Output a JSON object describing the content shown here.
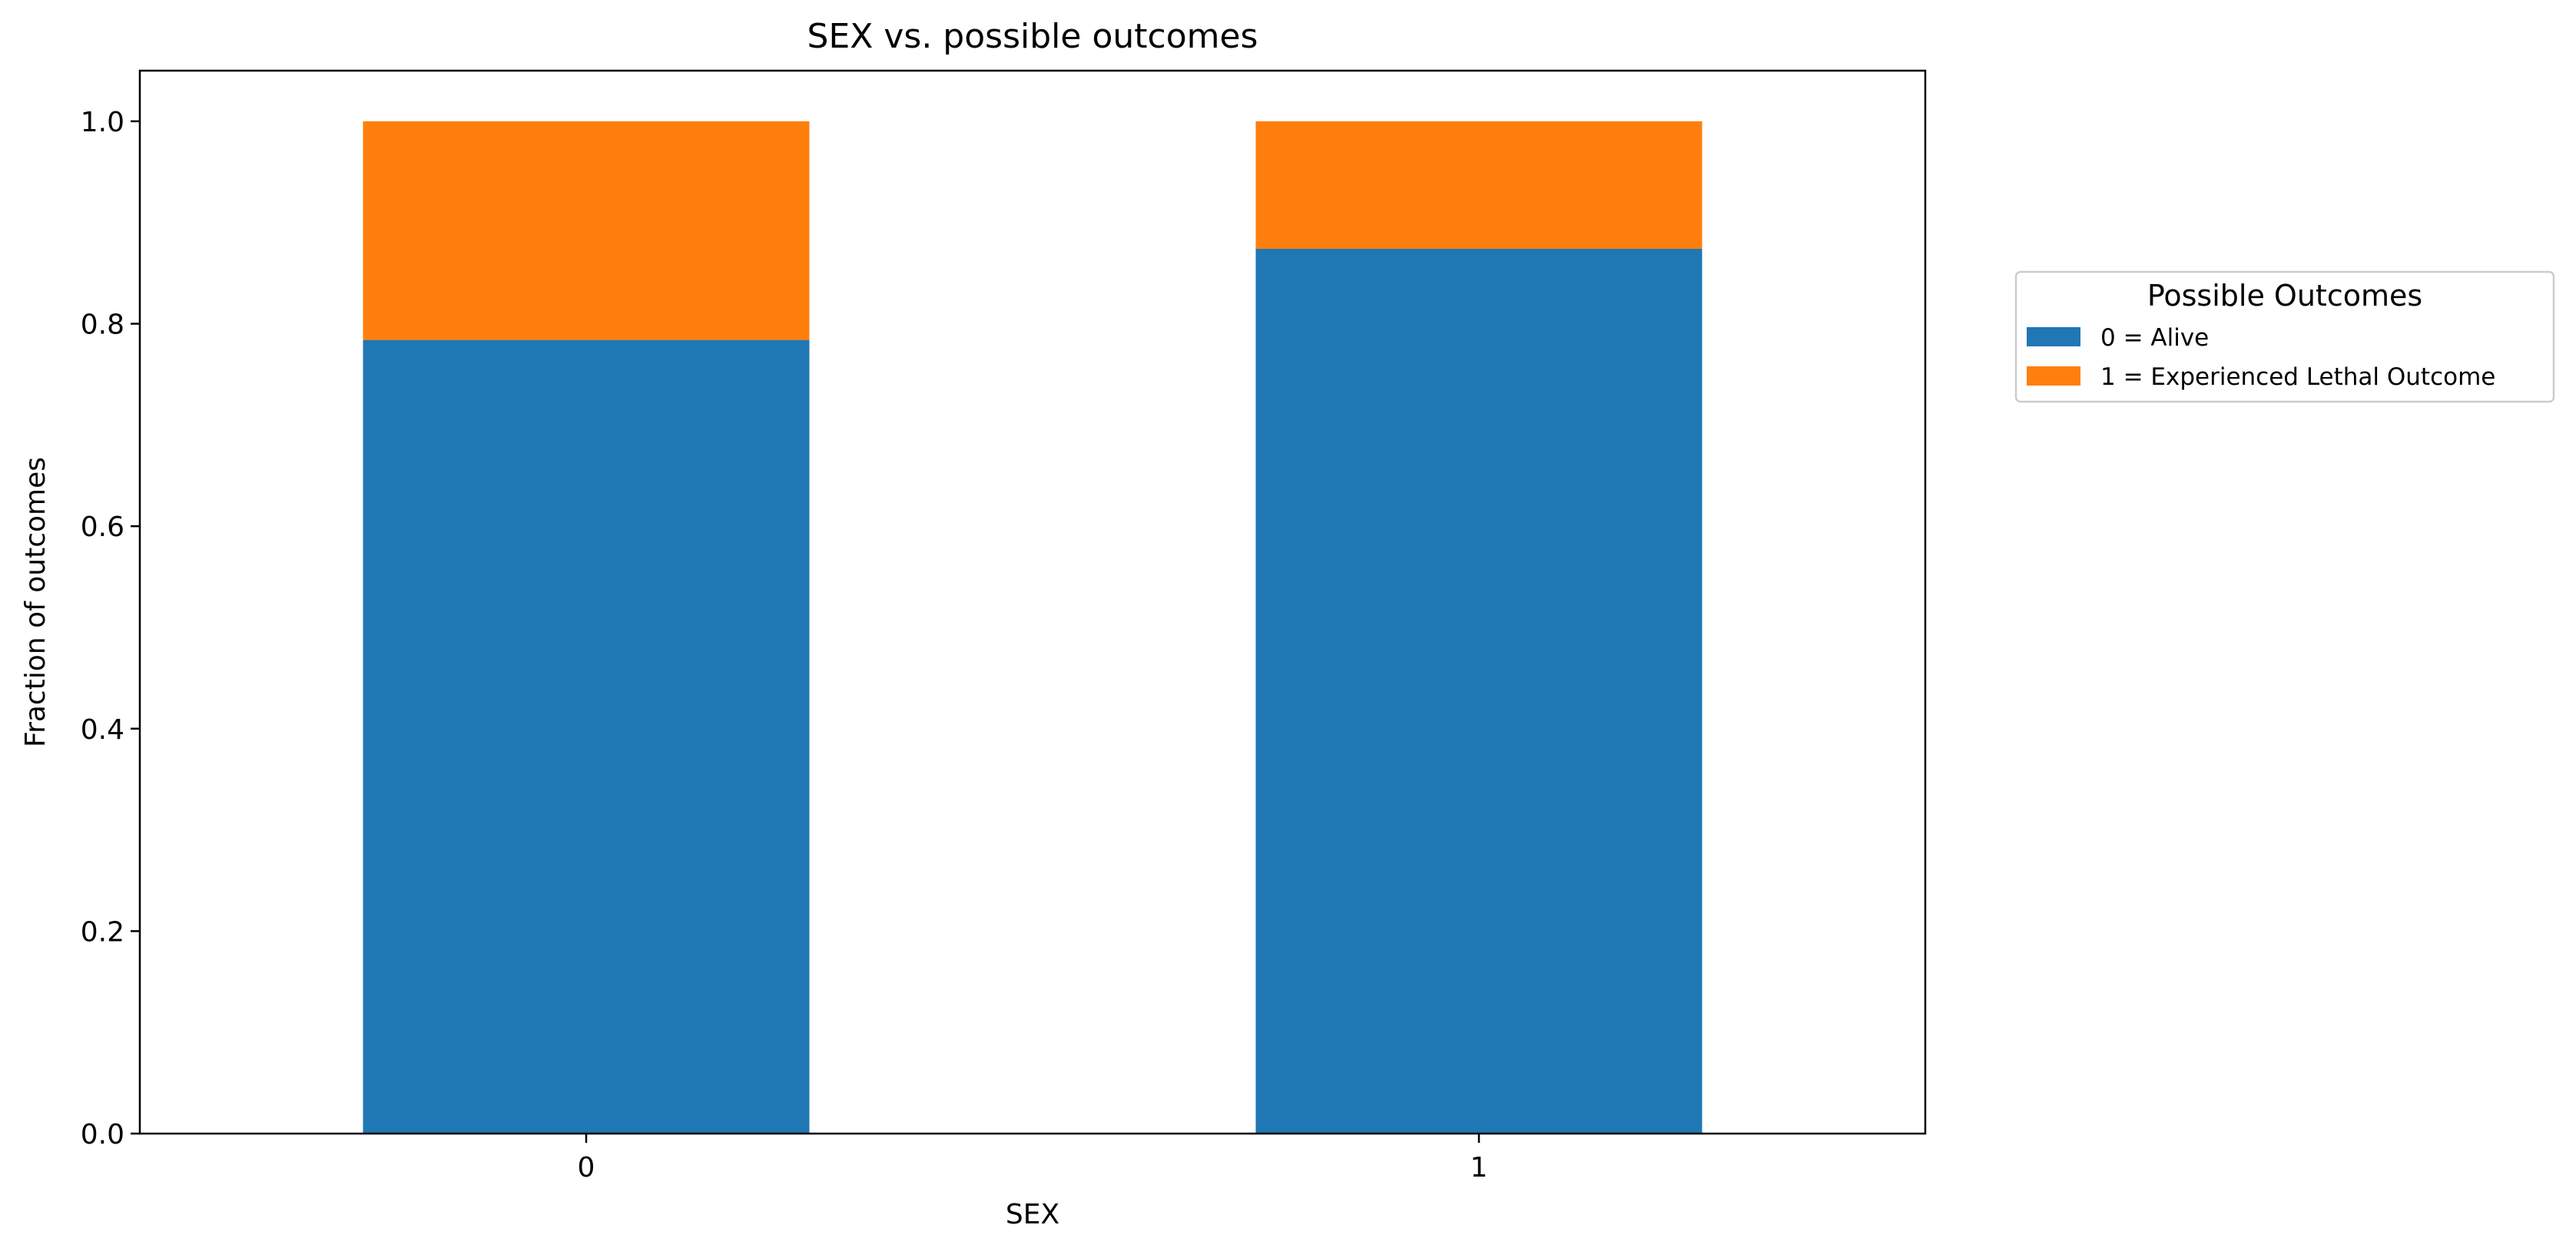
{
  "chart_data": {
    "type": "bar",
    "stacked": true,
    "title": "SEX vs. possible outcomes",
    "xlabel": "SEX",
    "ylabel": "Fraction of outcomes",
    "categories": [
      "0",
      "1"
    ],
    "yticks": [
      "0.0",
      "0.2",
      "0.4",
      "0.6",
      "0.8",
      "1.0"
    ],
    "ylim": [
      0,
      1.05
    ],
    "series": [
      {
        "name": "0 = Alive",
        "color": "#1f77b4",
        "values": [
          0.784,
          0.874
        ]
      },
      {
        "name": "1 = Experienced Lethal Outcome",
        "color": "#ff7f0e",
        "values": [
          0.216,
          0.126
        ]
      }
    ],
    "legend": {
      "title": "Possible Outcomes",
      "placement": "outside-right"
    },
    "grid": false
  }
}
